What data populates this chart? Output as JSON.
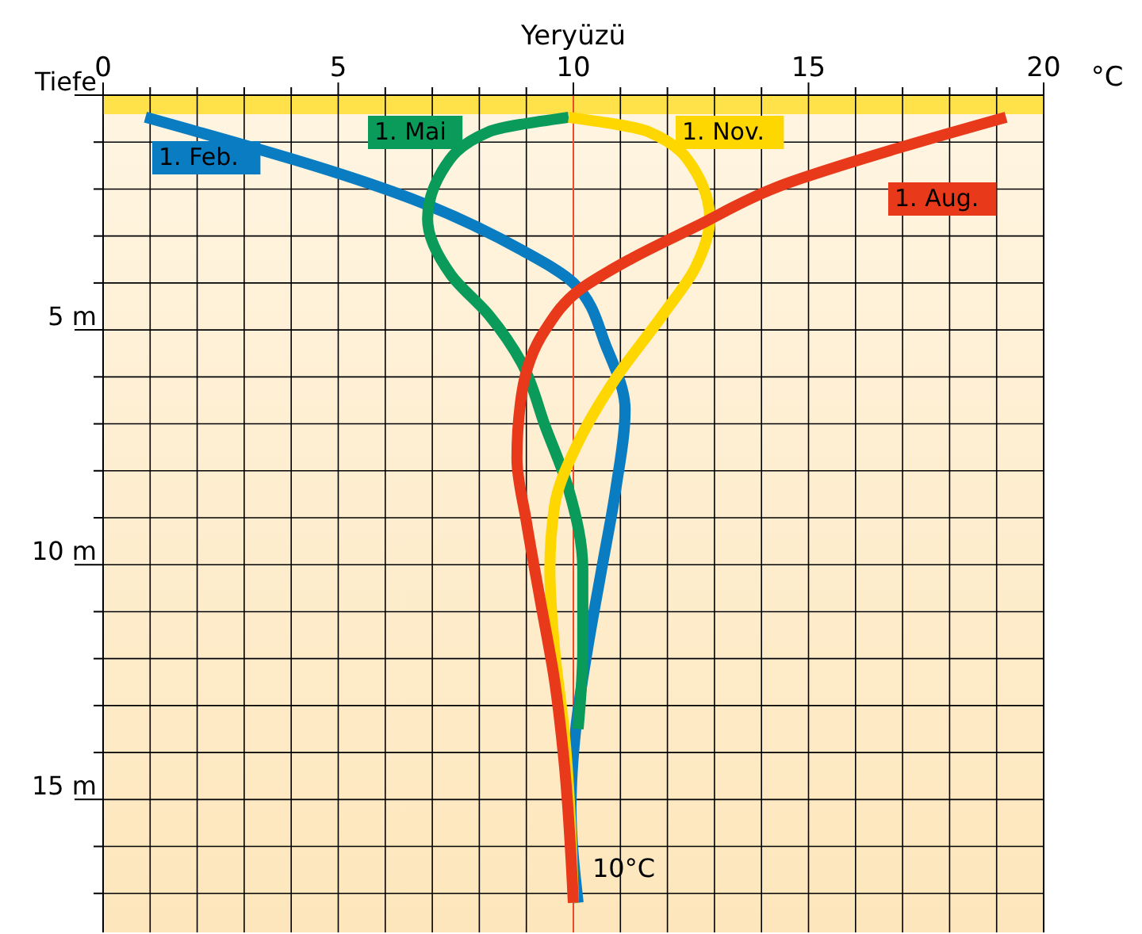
{
  "chart_data": {
    "type": "line",
    "title": "Yeryüzü",
    "xlabel": "°C",
    "xlim": [
      0,
      20
    ],
    "ylim": [
      18,
      0
    ],
    "xticks": [
      0,
      {
        "value": 1,
        "label": null
      },
      {
        "value": 2,
        "label": null
      },
      {
        "value": 3,
        "label": null
      },
      {
        "value": 4,
        "label": null
      },
      5,
      {
        "value": 6,
        "label": null
      },
      {
        "value": 7,
        "label": null
      },
      {
        "value": 8,
        "label": null
      },
      {
        "value": 9,
        "label": null
      },
      10,
      {
        "value": 11,
        "label": null
      },
      {
        "value": 12,
        "label": null
      },
      {
        "value": 13,
        "label": null
      },
      {
        "value": 14,
        "label": null
      },
      15,
      {
        "value": 16,
        "label": null
      },
      {
        "value": 17,
        "label": null
      },
      {
        "value": 18,
        "label": null
      },
      {
        "value": 19,
        "label": null
      },
      20
    ],
    "yticks": [
      {
        "value": 0,
        "label": "Tiefe"
      },
      {
        "value": 1,
        "label": null
      },
      {
        "value": 2,
        "label": null
      },
      {
        "value": 3,
        "label": null
      },
      {
        "value": 4,
        "label": null
      },
      {
        "value": 5,
        "label": "5 m"
      },
      {
        "value": 6,
        "label": null
      },
      {
        "value": 7,
        "label": null
      },
      {
        "value": 8,
        "label": null
      },
      {
        "value": 9,
        "label": null
      },
      {
        "value": 10,
        "label": "10 m"
      },
      {
        "value": 11,
        "label": null
      },
      {
        "value": 12,
        "label": null
      },
      {
        "value": 13,
        "label": null
      },
      {
        "value": 14,
        "label": null
      },
      {
        "value": 15,
        "label": "15 m"
      },
      {
        "value": 16,
        "label": null
      },
      {
        "value": 17,
        "label": null
      },
      {
        "value": 18,
        "label": null
      }
    ],
    "grid": true,
    "line_style": "solid",
    "ref_lines": [
      {
        "axis": "x",
        "value": 10,
        "color": "#f04a2a"
      }
    ],
    "annotations": [
      {
        "text": "10°C",
        "x": 10,
        "y": 16.5
      }
    ],
    "series": [
      {
        "name": "1. Feb.",
        "color": "#0a7dc2",
        "x": [
          0.9,
          6.8,
          8.9,
          10,
          10.7,
          11.1,
          10.9,
          10.6,
          10.3,
          10.05,
          9.95,
          10.1
        ],
        "values": [
          0.47,
          2.3,
          3.3,
          4.0,
          5.36,
          6.7,
          8.4,
          10.1,
          11.8,
          13.5,
          15.19,
          17.2
        ]
      },
      {
        "name": "1. Mai",
        "color": "#0a9a5a",
        "x": [
          9.9,
          8.2,
          7.2,
          6.9,
          7.4,
          8.2,
          8.9,
          9.4,
          9.9,
          10.2,
          10.2,
          10.1
        ],
        "values": [
          0.47,
          0.78,
          1.63,
          2.64,
          3.83,
          4.68,
          5.7,
          7.05,
          8.4,
          10.1,
          11.8,
          13.5
        ]
      },
      {
        "name": "1. Nov.",
        "color": "#ffd700",
        "x": [
          9.9,
          11.6,
          12.6,
          12.9,
          12.6,
          11.9,
          10.9,
          10.1,
          9.6,
          9.5,
          9.6,
          9.8,
          10
        ],
        "values": [
          0.47,
          0.78,
          1.63,
          2.64,
          3.66,
          4.68,
          6.03,
          7.4,
          8.75,
          10.1,
          11.8,
          13.5,
          17.2
        ]
      },
      {
        "name": "1. Aug.",
        "color": "#e8391a",
        "x": [
          19.2,
          17.0,
          14.3,
          12.6,
          11.2,
          10.1,
          9.4,
          8.9,
          8.8,
          9.0,
          9.3,
          9.6,
          9.8,
          10
        ],
        "values": [
          0.47,
          1.1,
          1.97,
          2.8,
          3.5,
          4.17,
          5.0,
          6.37,
          7.73,
          9.08,
          10.78,
          12.47,
          14.17,
          17.2
        ]
      }
    ]
  }
}
